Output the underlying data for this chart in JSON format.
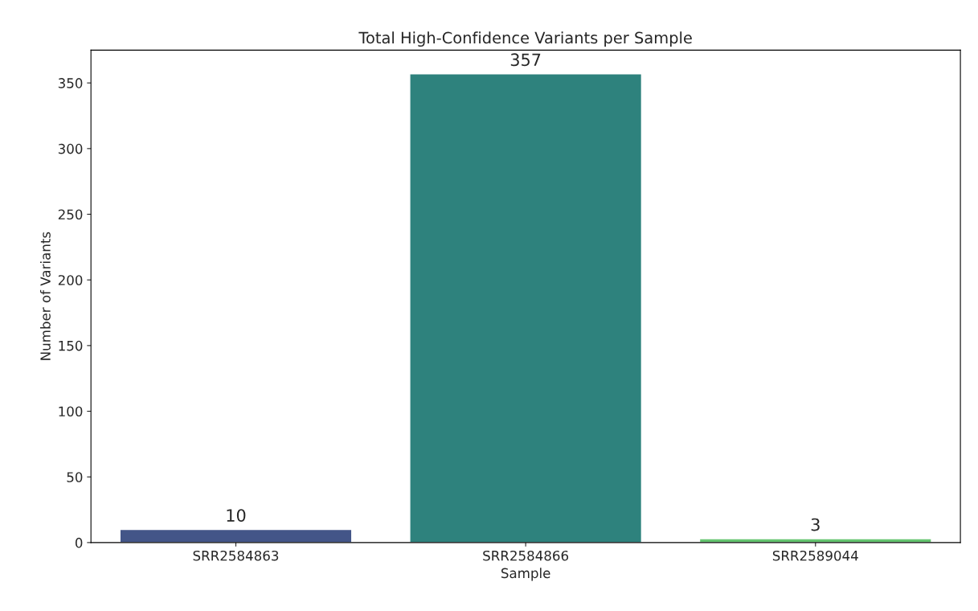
{
  "chart_data": {
    "type": "bar",
    "title": "Total High-Confidence Variants per Sample",
    "xlabel": "Sample",
    "ylabel": "Number of Variants",
    "categories": [
      "SRR2584863",
      "SRR2584866",
      "SRR2589044"
    ],
    "values": [
      10,
      357,
      3
    ],
    "colors": [
      "#435588",
      "#2e827d",
      "#64c46f"
    ],
    "ylim": [
      0,
      375
    ],
    "yticks": [
      0,
      50,
      100,
      150,
      200,
      250,
      300,
      350
    ],
    "data_labels": true,
    "grid": false,
    "legend": false
  }
}
